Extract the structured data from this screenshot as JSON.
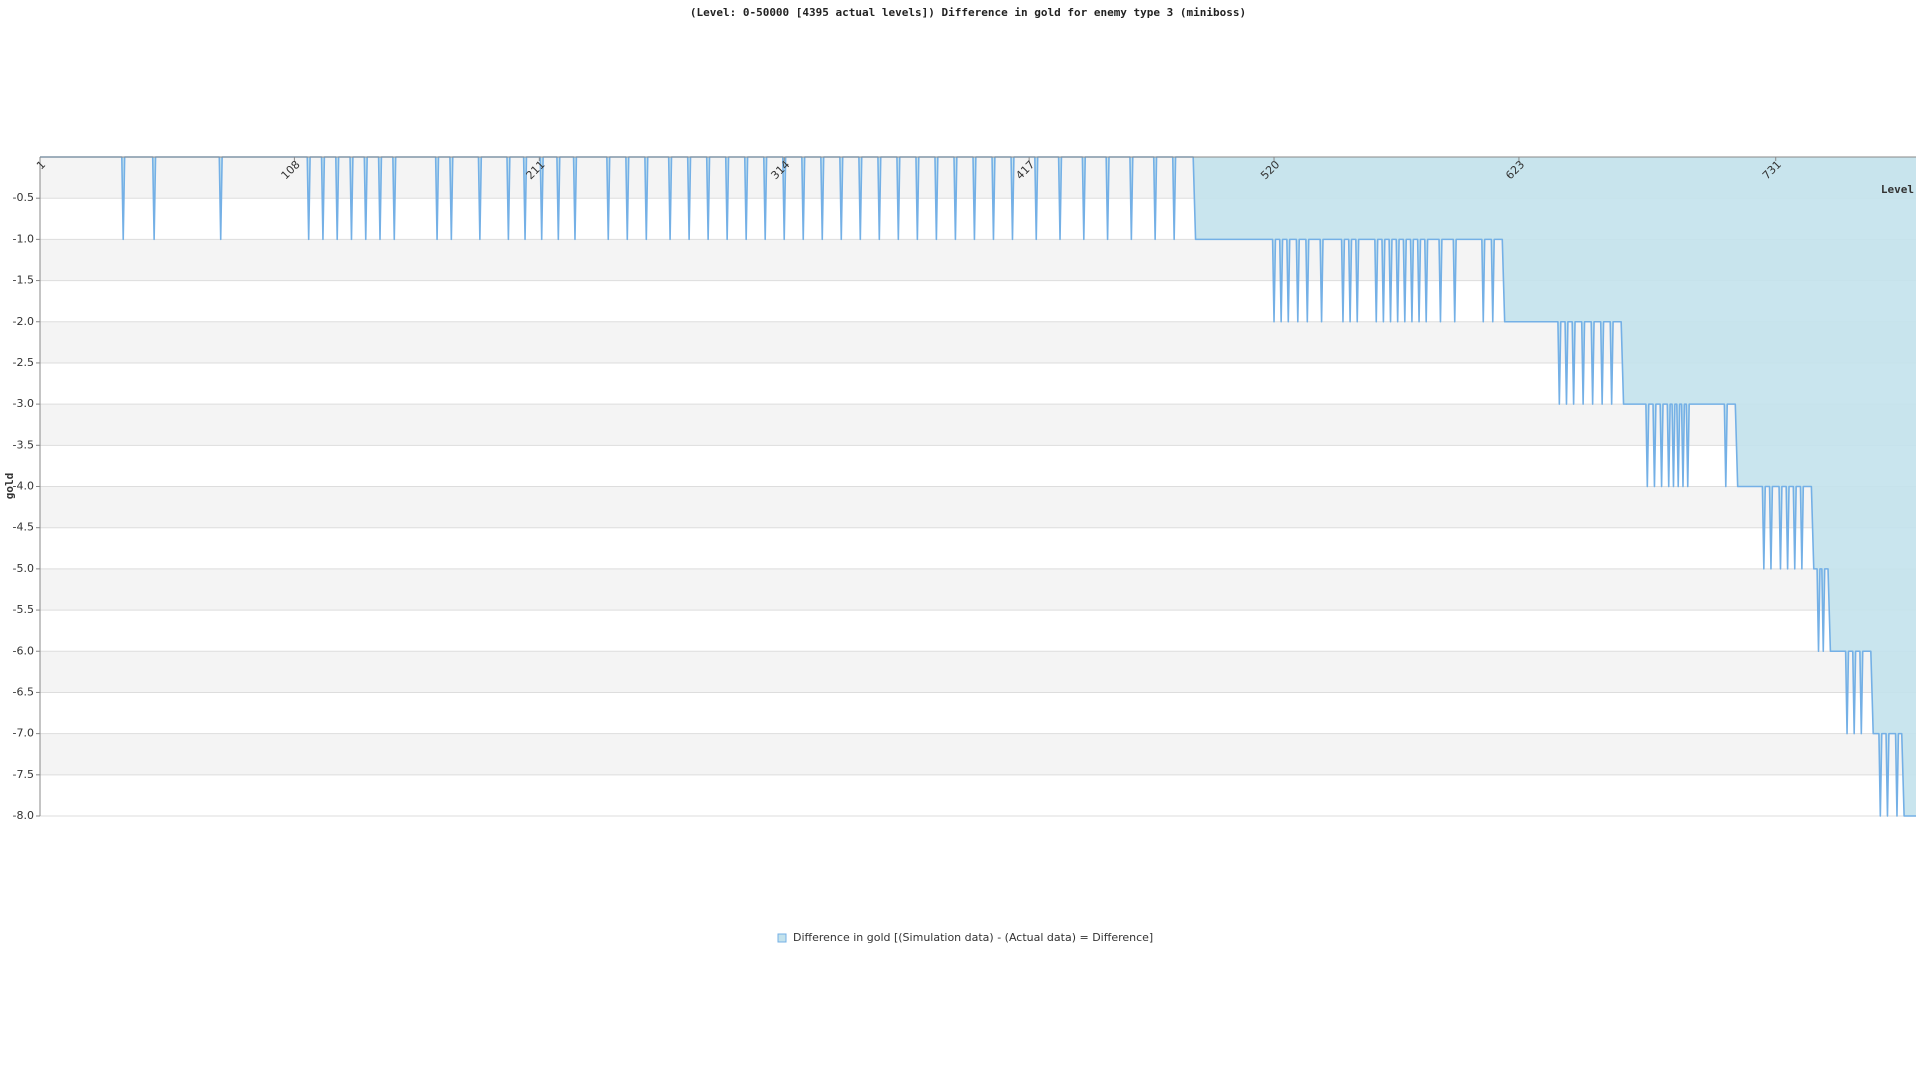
{
  "chart_data": {
    "type": "line",
    "title": "(Level: 0-50000 [4395 actual levels]) Difference in gold for enemy type 3 (miniboss)",
    "xlabel": "Level",
    "ylabel": "gold",
    "xlim": [
      1,
      790
    ],
    "xticks": [
      1,
      108,
      211,
      314,
      417,
      520,
      623,
      731
    ],
    "ylim": [
      -8,
      0
    ],
    "yticks": [
      -0.5,
      {
        "value": -1,
        "label": "-1.0"
      },
      -1.5,
      {
        "value": -2,
        "label": "-2.0"
      },
      -2.5,
      {
        "value": -3,
        "label": "-3.0"
      },
      -3.5,
      {
        "value": -4,
        "label": "-4.0"
      },
      -4.5,
      {
        "value": -5,
        "label": "-5.0"
      },
      -5.5,
      {
        "value": -6,
        "label": "-6.0"
      },
      -6.5,
      {
        "value": -7,
        "label": "-7.0"
      },
      -7.5,
      {
        "value": -8,
        "label": "-8.0"
      }
    ],
    "grid": true,
    "legend": "bottom",
    "x": [
      1,
      35.4,
      36,
      36.6,
      48.4,
      49,
      49.6,
      76.4,
      77,
      77.6,
      113.4,
      114,
      114.6,
      119.4,
      120,
      120.6,
      125.4,
      126,
      126.6,
      131.4,
      132,
      132.6,
      137.4,
      138,
      138.6,
      143.4,
      144,
      144.6,
      149.4,
      150,
      150.6,
      167.4,
      168,
      168.6,
      173.4,
      174,
      174.6,
      185.4,
      186,
      186.6,
      197.4,
      198,
      198.6,
      204.4,
      205,
      205.6,
      211.4,
      212,
      212.6,
      218.4,
      219,
      219.6,
      225.4,
      226,
      226.6,
      239.4,
      240,
      240.6,
      247.4,
      248,
      248.6,
      255.4,
      256,
      256.6,
      265.4,
      266,
      266.6,
      273.4,
      274,
      274.6,
      281.4,
      282,
      282.6,
      289.4,
      290,
      290.6,
      297.4,
      298,
      298.6,
      305.4,
      306,
      306.6,
      313.4,
      314,
      314.6,
      321.4,
      322,
      322.6,
      329.4,
      330,
      330.6,
      337.4,
      338,
      338.6,
      345.4,
      346,
      346.6,
      353.4,
      354,
      354.6,
      361.4,
      362,
      362.6,
      369.4,
      370,
      370.6,
      377.4,
      378,
      378.6,
      385.4,
      386,
      386.6,
      393.4,
      394,
      394.6,
      401.4,
      402,
      402.6,
      409.4,
      410,
      410.6,
      419.4,
      420,
      420.6,
      429.4,
      430,
      430.6,
      439.4,
      440,
      440.6,
      449.4,
      450,
      450.6,
      459.4,
      460,
      460.6,
      469.4,
      470,
      470.6,
      477.4,
      478,
      478.6,
      486,
      487,
      519.4,
      520,
      520.6,
      522.4,
      523,
      523.6,
      525.4,
      526,
      526.6,
      529.4,
      530,
      530.6,
      533.4,
      534,
      534.6,
      539.4,
      540,
      540.6,
      548.4,
      549,
      549.6,
      551.4,
      552,
      552.6,
      554.4,
      555,
      555.6,
      562.4,
      563,
      563.6,
      565.4,
      566,
      566.6,
      568.4,
      569,
      569.6,
      571.4,
      572,
      572.6,
      574.4,
      575,
      575.6,
      577.4,
      578,
      578.6,
      580.4,
      581,
      581.6,
      583.4,
      584,
      584.6,
      589.4,
      590,
      590.6,
      595.4,
      596,
      596.6,
      607.4,
      608,
      608.6,
      611.4,
      612,
      612.6,
      616,
      617,
      639.4,
      640,
      640.6,
      642.4,
      643,
      643.6,
      645.4,
      646,
      646.6,
      649.4,
      650,
      650.6,
      653.4,
      654,
      654.6,
      657.4,
      658,
      658.6,
      661.4,
      662,
      662.6,
      666,
      667,
      676.4,
      677,
      677.6,
      679.4,
      680,
      680.6,
      682.4,
      683,
      683.6,
      685.4,
      686,
      686.6,
      687.4,
      688,
      688.6,
      689.4,
      690,
      690.6,
      691.4,
      692,
      692.6,
      693.4,
      694,
      694.6,
      709.4,
      710,
      710.6,
      714,
      715,
      725.4,
      726,
      726.6,
      728.4,
      729,
      729.6,
      732.4,
      733,
      733.6,
      735.4,
      736,
      736.6,
      738.4,
      739,
      739.6,
      741.4,
      742,
      742.6,
      746,
      747,
      748.4,
      749,
      749.6,
      750.4,
      751,
      751.6,
      753,
      754,
      760.4,
      761,
      761.6,
      763.4,
      764,
      764.6,
      766.4,
      767,
      767.6,
      771,
      772,
      774.4,
      775,
      775.6,
      777.4,
      778,
      778.6,
      781.4,
      782,
      782.6,
      784,
      785,
      790
    ],
    "series": [
      {
        "name": "Difference in gold [(Simulation data) - (Actual data) = Difference]",
        "color": "#74b0e6",
        "fill_color": "#c3e2ec",
        "values": [
          0,
          0,
          -1,
          0,
          0,
          -1,
          0,
          0,
          -1,
          0,
          0,
          -1,
          0,
          0,
          -1,
          0,
          0,
          -1,
          0,
          0,
          -1,
          0,
          0,
          -1,
          0,
          0,
          -1,
          0,
          0,
          -1,
          0,
          0,
          -1,
          0,
          0,
          -1,
          0,
          0,
          -1,
          0,
          0,
          -1,
          0,
          0,
          -1,
          0,
          0,
          -1,
          0,
          0,
          -1,
          0,
          0,
          -1,
          0,
          0,
          -1,
          0,
          0,
          -1,
          0,
          0,
          -1,
          0,
          0,
          -1,
          0,
          0,
          -1,
          0,
          0,
          -1,
          0,
          0,
          -1,
          0,
          0,
          -1,
          0,
          0,
          -1,
          0,
          0,
          -1,
          0,
          0,
          -1,
          0,
          0,
          -1,
          0,
          0,
          -1,
          0,
          0,
          -1,
          0,
          0,
          -1,
          0,
          0,
          -1,
          0,
          0,
          -1,
          0,
          0,
          -1,
          0,
          0,
          -1,
          0,
          0,
          -1,
          0,
          0,
          -1,
          0,
          0,
          -1,
          0,
          0,
          -1,
          0,
          0,
          -1,
          0,
          0,
          -1,
          0,
          0,
          -1,
          0,
          0,
          -1,
          0,
          0,
          -1,
          0,
          0,
          -1,
          0,
          0,
          -1,
          -1,
          -2,
          -1,
          -1,
          -2,
          -1,
          -1,
          -2,
          -1,
          -1,
          -2,
          -1,
          -1,
          -2,
          -1,
          -1,
          -2,
          -1,
          -1,
          -2,
          -1,
          -1,
          -2,
          -1,
          -1,
          -2,
          -1,
          -1,
          -2,
          -1,
          -1,
          -2,
          -1,
          -1,
          -2,
          -1,
          -1,
          -2,
          -1,
          -1,
          -2,
          -1,
          -1,
          -2,
          -1,
          -1,
          -2,
          -1,
          -1,
          -2,
          -1,
          -1,
          -2,
          -1,
          -1,
          -2,
          -1,
          -1,
          -2,
          -1,
          -1,
          -2,
          -1,
          -1,
          -2,
          -2,
          -3,
          -2,
          -2,
          -3,
          -2,
          -2,
          -3,
          -2,
          -2,
          -3,
          -2,
          -2,
          -3,
          -2,
          -2,
          -3,
          -2,
          -2,
          -3,
          -2,
          -2,
          -3,
          -3,
          -4,
          -3,
          -3,
          -4,
          -3,
          -3,
          -4,
          -3,
          -3,
          -4,
          -3,
          -3,
          -4,
          -3,
          -3,
          -4,
          -3,
          -3,
          -4,
          -3,
          -3,
          -4,
          -3,
          -3,
          -4,
          -3,
          -3,
          -4,
          -4,
          -5,
          -4,
          -4,
          -5,
          -4,
          -4,
          -5,
          -4,
          -4,
          -5,
          -4,
          -4,
          -5,
          -4,
          -4,
          -5,
          -4,
          -4,
          -5,
          -5,
          -6,
          -5,
          -5,
          -6,
          -5,
          -5,
          -6,
          -6,
          -7,
          -6,
          -6,
          -7,
          -6,
          -6,
          -7,
          -6,
          -6,
          -7,
          -7,
          -8,
          -7,
          -7,
          -8,
          -7,
          -7,
          -8,
          -7,
          -7,
          -8,
          -8
        ]
      }
    ]
  }
}
